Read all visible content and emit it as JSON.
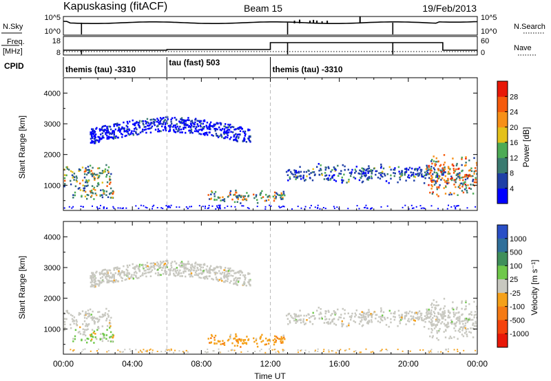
{
  "header": {
    "station": "Kapuskasing (fitACF)",
    "beam": "Beam 15",
    "date": "19/Feb/2013"
  },
  "noise_panel": {
    "left_label": "N.Sky",
    "right_label": "N.Search",
    "left_ticks": [
      "10^5",
      "10^0"
    ],
    "right_ticks": [
      "10^5",
      "10^0"
    ]
  },
  "freq_panel": {
    "left_label_1": "Freq.",
    "left_label_2": "[MHz]",
    "right_label": "Nave",
    "left_ticks": [
      "18",
      "8"
    ],
    "right_ticks": [
      "60",
      "0"
    ]
  },
  "cpid": {
    "label": "CPID",
    "segments": [
      {
        "start_hour": 0.0,
        "end_hour": 6.0,
        "text": "themis (tau) -3310"
      },
      {
        "start_hour": 6.0,
        "end_hour": 12.0,
        "text": "tau (fast) 503"
      },
      {
        "start_hour": 12.0,
        "end_hour": 24.0,
        "text": "themis (tau) -3310"
      }
    ]
  },
  "chart_data": [
    {
      "type": "heatmap",
      "title": "",
      "xlabel": "",
      "ylabel": "Slant Range [km]",
      "xlim": [
        0,
        24
      ],
      "ylim": [
        180,
        4500
      ],
      "yticks": [
        "1000",
        "2000",
        "3000",
        "4000"
      ],
      "colorbar": {
        "label": "Power [dB]",
        "ticks": [
          "4",
          "8",
          "12",
          "16",
          "20",
          "24",
          "28"
        ],
        "colors": [
          "#0000ff",
          "#1f3fa6",
          "#3a7a70",
          "#4dab55",
          "#e3c11b",
          "#f79018",
          "#f55a0c",
          "#e81808"
        ]
      },
      "regions": [
        {
          "name": "early low band",
          "hours": [
            0.0,
            2.8
          ],
          "range_km": [
            1000,
            1700
          ],
          "level": "12-24 dB"
        },
        {
          "name": "early lower band",
          "hours": [
            0.5,
            2.9
          ],
          "range_km": [
            550,
            1000
          ],
          "level": "8-16 dB"
        },
        {
          "name": "far band",
          "hours": [
            1.5,
            10.8
          ],
          "range_km": [
            2200,
            3300
          ],
          "level": "4-8 dB"
        },
        {
          "name": "midday near band",
          "hours": [
            8.3,
            12.8
          ],
          "range_km": [
            450,
            850
          ],
          "level": "12-28 dB"
        },
        {
          "name": "afternoon band",
          "hours": [
            12.8,
            22.0
          ],
          "range_km": [
            1100,
            1700
          ],
          "level": "4-16 dB"
        },
        {
          "name": "evening band",
          "hours": [
            21.0,
            24.0
          ],
          "range_km": [
            700,
            2000
          ],
          "level": "12-28 dB"
        }
      ]
    },
    {
      "type": "heatmap",
      "title": "",
      "xlabel": "Time UT",
      "ylabel": "Slant Range [km]",
      "xlim": [
        0,
        24
      ],
      "ylim": [
        180,
        4500
      ],
      "yticks": [
        "1000",
        "2000",
        "3000",
        "4000"
      ],
      "xticks": [
        "00:00",
        "04:00",
        "08:00",
        "12:00",
        "16:00",
        "20:00",
        "00:00"
      ],
      "colorbar": {
        "label": "Velocity [m s⁻¹]",
        "ticks": [
          "1000",
          "500",
          "100",
          "25",
          "-25",
          "-100",
          "-500",
          "-1000"
        ],
        "colors": [
          "#2a4fc6",
          "#2f6f9a",
          "#3f8f5a",
          "#6fc84a",
          "#c8c8c0",
          "#f5a11a",
          "#f57a14",
          "#f5420c",
          "#e81808"
        ]
      },
      "regions": [
        {
          "name": "early ground scatter",
          "hours": [
            0.0,
            2.8
          ],
          "range_km": [
            1000,
            1700
          ],
          "velocity": "-25 to 25"
        },
        {
          "name": "early lower band",
          "hours": [
            0.5,
            2.9
          ],
          "range_km": [
            550,
            1000
          ],
          "velocity": "25 to 100"
        },
        {
          "name": "far band",
          "hours": [
            1.5,
            10.8
          ],
          "range_km": [
            2200,
            3300
          ],
          "velocity": "-25 to 25"
        },
        {
          "name": "midday near band",
          "hours": [
            8.3,
            12.8
          ],
          "range_km": [
            450,
            850
          ],
          "velocity": "-100 to -25"
        },
        {
          "name": "afternoon band",
          "hours": [
            12.8,
            22.0
          ],
          "range_km": [
            1100,
            1700
          ],
          "velocity": "-25 to 25"
        },
        {
          "name": "evening band",
          "hours": [
            21.0,
            24.0
          ],
          "range_km": [
            700,
            2000
          ],
          "velocity": "-25 to 25"
        }
      ]
    }
  ]
}
